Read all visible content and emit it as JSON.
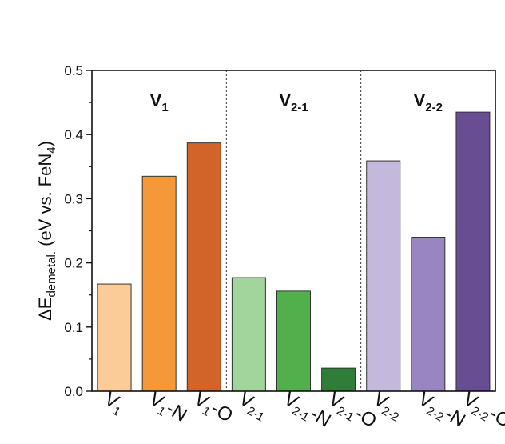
{
  "chart_data": {
    "type": "bar",
    "ylabel": {
      "prefix": "ΔE",
      "sub": "demetal.",
      "mid": " (eV vs. FeN",
      "sub2": "4",
      "suffix": ")"
    },
    "ylim": [
      0,
      0.5
    ],
    "yticks": [
      "0.0",
      "0.1",
      "0.2",
      "0.3",
      "0.4",
      "0.5"
    ],
    "grid": false,
    "groups": [
      {
        "base": "V",
        "sub": "1"
      },
      {
        "base": "V",
        "sub": "2-1"
      },
      {
        "base": "V",
        "sub": "2-2"
      }
    ],
    "bars": [
      {
        "label": {
          "base": "V",
          "sub": "1",
          "suffix": ""
        },
        "value": 0.167,
        "color": "#fccc98"
      },
      {
        "label": {
          "base": "V",
          "sub": "1",
          "suffix": "-N"
        },
        "value": 0.335,
        "color": "#f5983a"
      },
      {
        "label": {
          "base": "V",
          "sub": "1",
          "suffix": "-O"
        },
        "value": 0.387,
        "color": "#d2642a"
      },
      {
        "label": {
          "base": "V",
          "sub": "2-1",
          "suffix": ""
        },
        "value": 0.177,
        "color": "#a1d59c"
      },
      {
        "label": {
          "base": "V",
          "sub": "2-1",
          "suffix": "-N"
        },
        "value": 0.156,
        "color": "#52b04c"
      },
      {
        "label": {
          "base": "V",
          "sub": "2-1",
          "suffix": "-O"
        },
        "value": 0.036,
        "color": "#2f7d37"
      },
      {
        "label": {
          "base": "V",
          "sub": "2-2",
          "suffix": ""
        },
        "value": 0.359,
        "color": "#c5b8dd"
      },
      {
        "label": {
          "base": "V",
          "sub": "2-2",
          "suffix": "-N"
        },
        "value": 0.24,
        "color": "#9985c1"
      },
      {
        "label": {
          "base": "V",
          "sub": "2-2",
          "suffix": "-O"
        },
        "value": 0.435,
        "color": "#684d92"
      }
    ]
  }
}
